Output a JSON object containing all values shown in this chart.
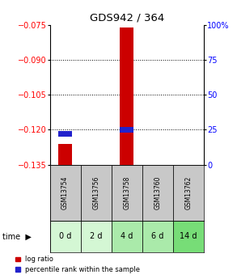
{
  "title": "GDS942 / 364",
  "samples": [
    "GSM13754",
    "GSM13756",
    "GSM13758",
    "GSM13760",
    "GSM13762"
  ],
  "time_labels": [
    "0 d",
    "2 d",
    "4 d",
    "6 d",
    "14 d"
  ],
  "log_ratio_top": [
    -0.126,
    null,
    -0.076,
    null,
    null
  ],
  "log_ratio_bottom": [
    -0.135,
    null,
    -0.135,
    null,
    null
  ],
  "percentile_rank_pct": [
    22,
    null,
    25,
    null,
    null
  ],
  "ylim_left": [
    -0.135,
    -0.075
  ],
  "ylim_right": [
    0,
    100
  ],
  "yticks_left": [
    -0.135,
    -0.12,
    -0.105,
    -0.09,
    -0.075
  ],
  "yticks_right": [
    0,
    25,
    50,
    75,
    100
  ],
  "bar_color_red": "#cc0000",
  "bar_color_blue": "#2222cc",
  "sample_bg_color": "#c8c8c8",
  "time_bg_colors": [
    "#d4f7d4",
    "#d4f7d4",
    "#aaeaaa",
    "#aaeaaa",
    "#77dd77"
  ],
  "legend_red": "log ratio",
  "legend_blue": "percentile rank within the sample"
}
